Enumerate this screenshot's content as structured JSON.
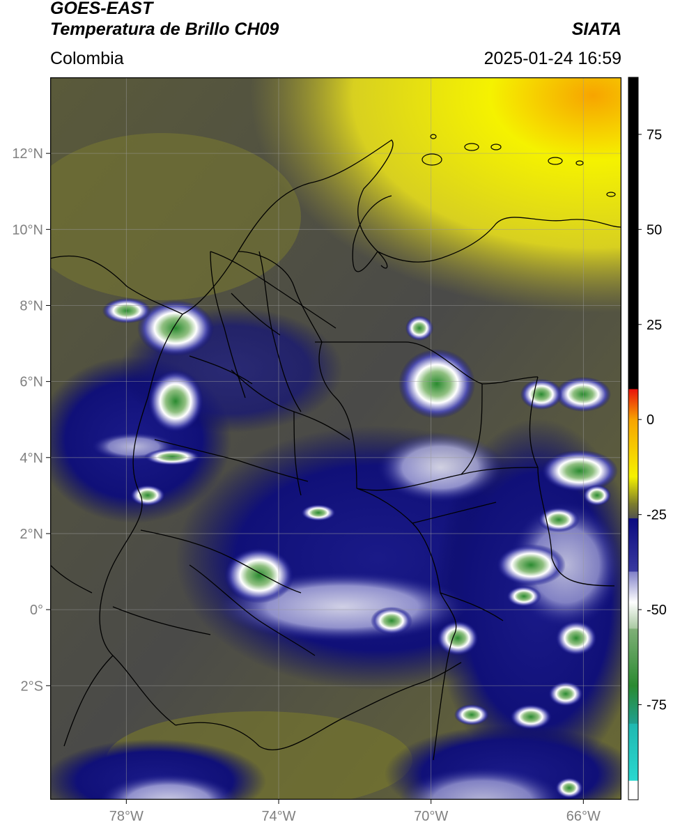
{
  "header": {
    "satellite": "GOES-EAST",
    "product": "Temperatura de Brillo CH09",
    "brand": "SIATA",
    "region": "Colombia",
    "datetime": "2025-01-24 16:59"
  },
  "map": {
    "lon_range": [
      -80,
      -65
    ],
    "lat_range": [
      -5,
      14
    ],
    "lon_ticks": [
      {
        "value": -78,
        "label": "78°W"
      },
      {
        "value": -74,
        "label": "74°W"
      },
      {
        "value": -70,
        "label": "70°W"
      },
      {
        "value": -66,
        "label": "66°W"
      }
    ],
    "lat_ticks": [
      {
        "value": 12,
        "label": "12°N"
      },
      {
        "value": 10,
        "label": "10°N"
      },
      {
        "value": 8,
        "label": "8°N"
      },
      {
        "value": 6,
        "label": "6°N"
      },
      {
        "value": 4,
        "label": "4°N"
      },
      {
        "value": 2,
        "label": "2°N"
      },
      {
        "value": 0,
        "label": "0°"
      },
      {
        "value": -2,
        "label": "2°S"
      }
    ]
  },
  "colorbar": {
    "range": [
      -100,
      90
    ],
    "ticks": [
      {
        "value": 75,
        "label": "75"
      },
      {
        "value": 50,
        "label": "50"
      },
      {
        "value": 25,
        "label": "25"
      },
      {
        "value": 0,
        "label": "0"
      },
      {
        "value": -25,
        "label": "-25"
      },
      {
        "value": -50,
        "label": "-50"
      },
      {
        "value": -75,
        "label": "-75"
      }
    ],
    "colors": {
      "top": "#000000",
      "red": "#e8130c",
      "orange": "#f7a400",
      "yellow": "#f5f200",
      "olive": "#7f7f2a",
      "gray": "#505050",
      "navy": "#0a0a80",
      "white": "#ffffff",
      "green": "#2a8a30",
      "cyan": "#2ad8d0"
    }
  }
}
